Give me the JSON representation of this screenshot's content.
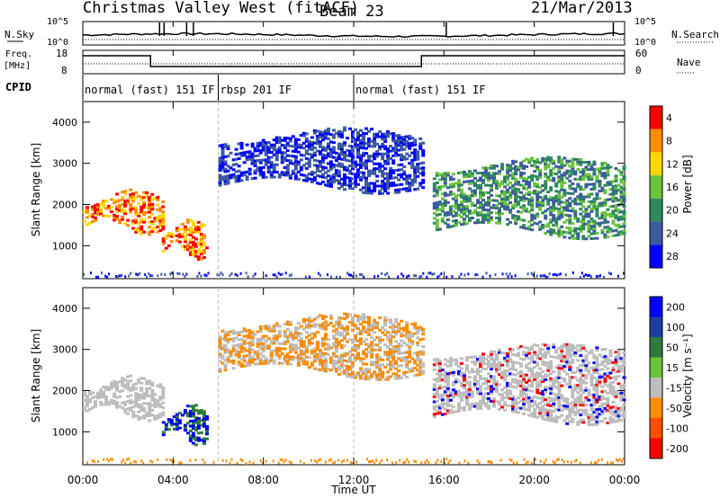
{
  "header": {
    "title": "Christmas Valley West (fitACF)",
    "beam": "Beam 23",
    "date": "21/Mar/2013"
  },
  "nsky_panel": {
    "label": "N.Sky",
    "ytick_top": "10^5",
    "ytick_bottom": "10^0",
    "right_label": "N.Search",
    "right_ytick_top": "10^5",
    "right_ytick_bottom": "10^0"
  },
  "freq_panel": {
    "label_line1": "Freq.",
    "label_line2": "[MHz]",
    "ytick_top": "18",
    "ytick_bottom": "8",
    "right_label": "Nave",
    "right_ytick_top": "60",
    "right_ytick_bottom": "0"
  },
  "cpid_panel": {
    "label": "CPID",
    "segments": [
      {
        "label": "normal (fast) 151 IF",
        "start_hour": 0,
        "end_hour": 6
      },
      {
        "label": "rbsp 201 IF",
        "start_hour": 6,
        "end_hour": 12
      },
      {
        "label": "normal (fast) 151 IF",
        "start_hour": 12,
        "end_hour": 24
      }
    ]
  },
  "chart_data": [
    {
      "type": "heatmap",
      "name": "power",
      "ylabel": "Slant Range [km]",
      "ylim": [
        200,
        4500
      ],
      "yticks": [
        "1000",
        "2000",
        "3000",
        "4000"
      ],
      "colorbar_label": "Power [dB]",
      "colorbar_ticks": [
        "4",
        "8",
        "12",
        "16",
        "20",
        "24",
        "28"
      ],
      "colors": [
        "#0000ff",
        "#3c5aa0",
        "#2e8a5e",
        "#6ac43c",
        "#ffd700",
        "#ff8c00",
        "#ff0000"
      ],
      "echo_regions": [
        {
          "start_hour": 0.0,
          "end_hour": 3.5,
          "range_low": 1500,
          "range_high": 2200,
          "power": "high"
        },
        {
          "start_hour": 3.5,
          "end_hour": 5.5,
          "range_low": 900,
          "range_high": 1500,
          "power": "high"
        },
        {
          "start_hour": 6.0,
          "end_hour": 15.0,
          "range_low": 2500,
          "range_high": 3700,
          "power": "low"
        },
        {
          "start_hour": 15.5,
          "end_hour": 24.0,
          "range_low": 1400,
          "range_high": 3000,
          "power": "medium"
        }
      ]
    },
    {
      "type": "heatmap",
      "name": "velocity",
      "ylabel": "Slant Range [km]",
      "ylim": [
        200,
        4500
      ],
      "yticks": [
        "1000",
        "2000",
        "3000",
        "4000"
      ],
      "xlabel": "Time UT",
      "xticks": [
        "00:00",
        "04:00",
        "08:00",
        "12:00",
        "16:00",
        "20:00",
        "00:00"
      ],
      "colorbar_label": "Velocity [m s⁻¹]",
      "colorbar_ticks": [
        "200",
        "100",
        "50",
        "15",
        "-15",
        "-50",
        "-100",
        "-200"
      ],
      "colors": [
        "#0000ff",
        "#1f3fa0",
        "#2e7a3e",
        "#6ac43c",
        "#bdbdbd",
        "#ff8c00",
        "#ff5000",
        "#ff0000"
      ]
    }
  ]
}
